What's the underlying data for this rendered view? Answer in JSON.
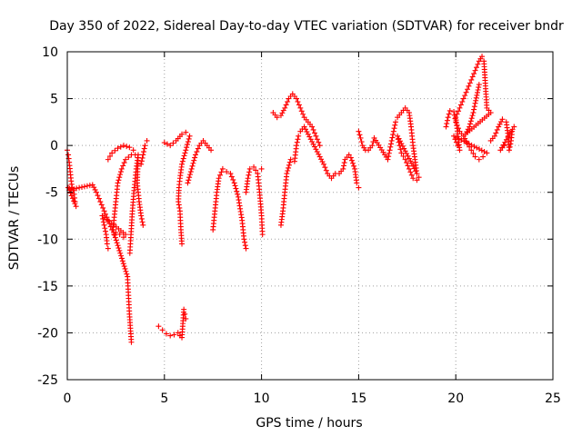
{
  "chart_data": {
    "type": "scatter",
    "title": "Day 350 of 2022, Sidereal Day-to-day VTEC variation (SDTVAR) for receiver bndr",
    "xlabel": "GPS time / hours",
    "ylabel": "SDTVAR / TECUs",
    "xlim": [
      0,
      25
    ],
    "ylim": [
      -25,
      10
    ],
    "xticks": [
      "0",
      "5",
      "10",
      "15",
      "20",
      "25"
    ],
    "yticks": [
      "10",
      "5",
      "0",
      "-5",
      "-10",
      "-15",
      "-20",
      "-25"
    ],
    "grid": true,
    "marker": "+",
    "color": "#ff0000",
    "series": [
      {
        "name": "SDTVAR",
        "points": [
          [
            0.0,
            -0.5
          ],
          [
            0.05,
            -1.0
          ],
          [
            0.1,
            -1.8
          ],
          [
            0.15,
            -2.8
          ],
          [
            0.2,
            -3.8
          ],
          [
            0.25,
            -4.5
          ],
          [
            0.3,
            -4.8
          ],
          [
            0.35,
            -5.2
          ],
          [
            0.4,
            -6.0
          ],
          [
            0.45,
            -6.5
          ],
          [
            0.05,
            -4.5
          ],
          [
            0.12,
            -4.6
          ],
          [
            0.2,
            -4.7
          ],
          [
            1.3,
            -4.2
          ],
          [
            1.5,
            -5.0
          ],
          [
            1.7,
            -6.0
          ],
          [
            1.9,
            -7.0
          ],
          [
            2.1,
            -8.0
          ],
          [
            2.3,
            -9.0
          ],
          [
            2.4,
            -9.5
          ],
          [
            2.5,
            -9.3
          ],
          [
            2.7,
            -9.5
          ],
          [
            2.9,
            -9.8
          ],
          [
            3.0,
            -9.5
          ],
          [
            1.8,
            -7.5
          ],
          [
            1.9,
            -8.5
          ],
          [
            2.0,
            -9.5
          ],
          [
            2.05,
            -10.5
          ],
          [
            2.1,
            -11.0
          ],
          [
            2.1,
            -1.5
          ],
          [
            2.3,
            -0.8
          ],
          [
            2.6,
            -0.3
          ],
          [
            2.9,
            0.0
          ],
          [
            3.2,
            -0.2
          ],
          [
            3.4,
            -0.5
          ],
          [
            3.5,
            -1.0
          ],
          [
            3.3,
            -1.0
          ],
          [
            3.0,
            -1.5
          ],
          [
            2.8,
            -2.5
          ],
          [
            2.6,
            -4.0
          ],
          [
            2.5,
            -6.0
          ],
          [
            2.4,
            -8.0
          ],
          [
            2.35,
            -9.0
          ],
          [
            3.1,
            -14.0
          ],
          [
            3.15,
            -16.0
          ],
          [
            3.2,
            -18.0
          ],
          [
            3.25,
            -19.5
          ],
          [
            3.3,
            -21.0
          ],
          [
            3.22,
            -11.5
          ],
          [
            3.28,
            -9.5
          ],
          [
            3.35,
            -7.0
          ],
          [
            3.45,
            -4.5
          ],
          [
            3.55,
            -2.5
          ],
          [
            3.65,
            -1.0
          ],
          [
            3.6,
            -4.0
          ],
          [
            3.7,
            -6.0
          ],
          [
            3.8,
            -7.5
          ],
          [
            3.9,
            -8.5
          ],
          [
            3.8,
            -2.0
          ],
          [
            3.9,
            -1.0
          ],
          [
            4.0,
            0.0
          ],
          [
            4.1,
            0.5
          ],
          [
            4.7,
            -19.3
          ],
          [
            4.9,
            -19.7
          ],
          [
            5.1,
            -20.1
          ],
          [
            5.3,
            -20.3
          ],
          [
            5.5,
            -20.2
          ],
          [
            5.7,
            -20.0
          ],
          [
            5.8,
            -20.3
          ],
          [
            5.9,
            -20.5
          ],
          [
            6.0,
            -17.5
          ],
          [
            6.05,
            -18.0
          ],
          [
            6.1,
            -18.5
          ],
          [
            5.0,
            0.3
          ],
          [
            5.3,
            0.0
          ],
          [
            5.6,
            0.5
          ],
          [
            5.9,
            1.2
          ],
          [
            6.1,
            1.4
          ],
          [
            6.3,
            1.0
          ],
          [
            6.1,
            -0.5
          ],
          [
            5.9,
            -2.0
          ],
          [
            5.8,
            -3.5
          ],
          [
            5.75,
            -4.5
          ],
          [
            5.72,
            -6.0
          ],
          [
            5.8,
            -7.0
          ],
          [
            5.85,
            -9.0
          ],
          [
            5.9,
            -10.5
          ],
          [
            6.2,
            -4.0
          ],
          [
            6.4,
            -2.5
          ],
          [
            6.6,
            -1.0
          ],
          [
            6.8,
            0.0
          ],
          [
            7.0,
            0.5
          ],
          [
            7.2,
            0.0
          ],
          [
            7.4,
            -0.5
          ],
          [
            7.5,
            -9.0
          ],
          [
            7.6,
            -7.0
          ],
          [
            7.7,
            -5.0
          ],
          [
            7.8,
            -3.5
          ],
          [
            8.0,
            -2.5
          ],
          [
            8.2,
            -2.8
          ],
          [
            8.4,
            -3.0
          ],
          [
            8.6,
            -4.0
          ],
          [
            8.8,
            -5.5
          ],
          [
            9.0,
            -8.0
          ],
          [
            9.1,
            -10.0
          ],
          [
            9.2,
            -11.0
          ],
          [
            9.2,
            -5.0
          ],
          [
            9.3,
            -3.5
          ],
          [
            9.4,
            -2.5
          ],
          [
            9.6,
            -2.3
          ],
          [
            9.8,
            -3.0
          ],
          [
            9.9,
            -5.0
          ],
          [
            10.0,
            -7.5
          ],
          [
            10.05,
            -9.5
          ],
          [
            10.0,
            -2.5
          ],
          [
            10.6,
            3.5
          ],
          [
            10.8,
            3.0
          ],
          [
            11.0,
            3.2
          ],
          [
            11.2,
            4.0
          ],
          [
            11.4,
            5.0
          ],
          [
            11.6,
            5.5
          ],
          [
            11.8,
            5.0
          ],
          [
            12.0,
            4.0
          ],
          [
            12.2,
            3.0
          ],
          [
            12.4,
            2.5
          ],
          [
            12.6,
            2.0
          ],
          [
            12.8,
            1.0
          ],
          [
            13.0,
            0.0
          ],
          [
            11.0,
            -8.5
          ],
          [
            11.1,
            -7.0
          ],
          [
            11.2,
            -5.0
          ],
          [
            11.3,
            -3.0
          ],
          [
            11.5,
            -1.5
          ],
          [
            11.7,
            -1.7
          ],
          [
            11.8,
            0.0
          ],
          [
            11.9,
            1.0
          ],
          [
            12.0,
            1.5
          ],
          [
            12.2,
            2.0
          ],
          [
            13.2,
            -2.0
          ],
          [
            13.4,
            -3.0
          ],
          [
            13.6,
            -3.5
          ],
          [
            13.8,
            -3.0
          ],
          [
            14.0,
            -3.0
          ],
          [
            14.2,
            -2.5
          ],
          [
            14.3,
            -1.5
          ],
          [
            14.5,
            -1.0
          ],
          [
            14.6,
            -1.3
          ],
          [
            14.8,
            -2.5
          ],
          [
            14.9,
            -4.0
          ],
          [
            15.0,
            -4.5
          ],
          [
            15.0,
            1.5
          ],
          [
            15.1,
            0.8
          ],
          [
            15.2,
            0.0
          ],
          [
            15.35,
            -0.5
          ],
          [
            15.5,
            -0.5
          ],
          [
            15.7,
            0.0
          ],
          [
            15.8,
            0.8
          ],
          [
            16.5,
            -1.5
          ],
          [
            16.6,
            -0.5
          ],
          [
            16.7,
            0.5
          ],
          [
            16.8,
            1.5
          ],
          [
            16.9,
            2.5
          ],
          [
            17.0,
            3.0
          ],
          [
            17.2,
            3.5
          ],
          [
            17.4,
            4.0
          ],
          [
            17.6,
            3.5
          ],
          [
            17.7,
            2.0
          ],
          [
            17.8,
            0.0
          ],
          [
            17.9,
            -1.5
          ],
          [
            18.0,
            -3.0
          ],
          [
            17.0,
            1.0
          ],
          [
            17.1,
            0.0
          ],
          [
            17.2,
            -0.8
          ],
          [
            17.4,
            -1.5
          ],
          [
            17.6,
            -2.5
          ],
          [
            17.8,
            -3.5
          ],
          [
            18.0,
            -3.7
          ],
          [
            18.1,
            -3.4
          ],
          [
            19.5,
            2.0
          ],
          [
            19.6,
            3.0
          ],
          [
            19.7,
            3.7
          ],
          [
            19.9,
            3.6
          ],
          [
            20.0,
            2.5
          ],
          [
            20.2,
            1.5
          ],
          [
            20.4,
            1.0
          ],
          [
            20.6,
            0.2
          ],
          [
            20.8,
            -0.5
          ],
          [
            21.0,
            -1.2
          ],
          [
            21.2,
            -1.5
          ],
          [
            21.4,
            -1.2
          ],
          [
            21.6,
            -0.8
          ],
          [
            19.9,
            1.0
          ],
          [
            20.1,
            0.0
          ],
          [
            20.2,
            -0.5
          ],
          [
            20.0,
            3.0
          ],
          [
            20.2,
            4.0
          ],
          [
            20.4,
            5.0
          ],
          [
            20.6,
            6.0
          ],
          [
            20.8,
            7.0
          ],
          [
            21.0,
            8.0
          ],
          [
            21.2,
            9.0
          ],
          [
            21.35,
            9.5
          ],
          [
            21.45,
            9.0
          ],
          [
            21.6,
            4.0
          ],
          [
            21.8,
            3.5
          ],
          [
            20.5,
            1.2
          ],
          [
            20.7,
            2.0
          ],
          [
            20.9,
            3.5
          ],
          [
            21.0,
            4.5
          ],
          [
            21.2,
            6.5
          ],
          [
            21.8,
            0.5
          ],
          [
            22.0,
            1.0
          ],
          [
            22.2,
            2.0
          ],
          [
            22.4,
            2.8
          ],
          [
            22.6,
            2.5
          ],
          [
            22.7,
            1.0
          ],
          [
            22.75,
            -0.5
          ],
          [
            22.85,
            0.5
          ],
          [
            22.9,
            1.5
          ],
          [
            23.0,
            2.0
          ],
          [
            22.3,
            -0.5
          ],
          [
            22.5,
            0.0
          ]
        ]
      }
    ]
  }
}
